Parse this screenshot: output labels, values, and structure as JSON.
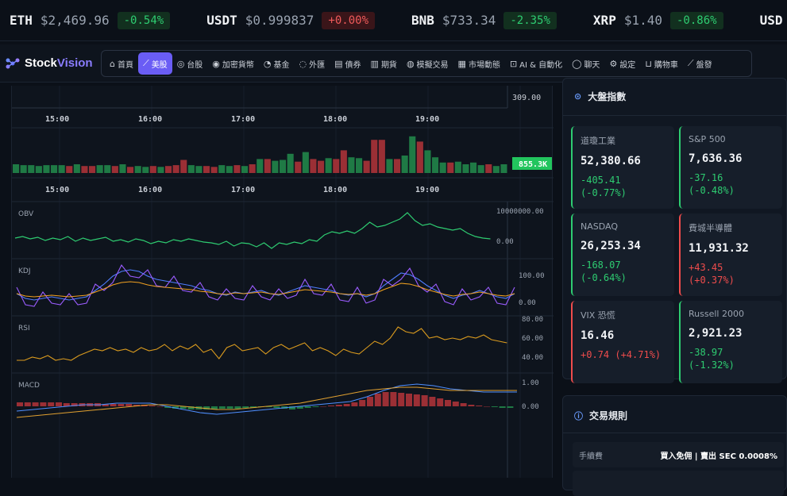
{
  "ticker": [
    {
      "symbol": "ETH",
      "price": "$2,469.96",
      "change": "-0.54%",
      "dir": "up"
    },
    {
      "symbol": "USDT",
      "price": "$0.999837",
      "change": "+0.00%",
      "dir": "neutral"
    },
    {
      "symbol": "BNB",
      "price": "$733.34",
      "change": "-2.35%",
      "dir": "up"
    },
    {
      "symbol": "XRP",
      "price": "$1.40",
      "change": "-0.86%",
      "dir": "up"
    },
    {
      "symbol": "USD",
      "price": "",
      "change": "",
      "dir": "up"
    }
  ],
  "brand": {
    "name_a": "Stock",
    "name_b": "Vision"
  },
  "nav": [
    {
      "icon": "⌂",
      "label": "首頁"
    },
    {
      "icon": "⟋",
      "label": "美股",
      "active": true
    },
    {
      "icon": "◎",
      "label": "台股"
    },
    {
      "icon": "◉",
      "label": "加密貨幣"
    },
    {
      "icon": "◔",
      "label": "基金"
    },
    {
      "icon": "◌",
      "label": "外匯"
    },
    {
      "icon": "▤",
      "label": "債券"
    },
    {
      "icon": "▥",
      "label": "期貨"
    },
    {
      "icon": "◍",
      "label": "模擬交易"
    },
    {
      "icon": "▦",
      "label": "市場動態"
    },
    {
      "icon": "⊡",
      "label": "AI & 自動化"
    },
    {
      "icon": "◯",
      "label": "聊天"
    },
    {
      "icon": "⚙",
      "label": "設定"
    },
    {
      "icon": "⊔",
      "label": "購物車"
    },
    {
      "icon": "⟋",
      "label": "盤發"
    }
  ],
  "chart": {
    "top_price_label": "309.00",
    "time_labels": [
      "15:00",
      "16:00",
      "17:00",
      "18:00",
      "19:00"
    ],
    "volume_label": "855.3K",
    "obv": {
      "name": "OBV",
      "top": "10000000.00",
      "bottom": "0.00"
    },
    "kdj": {
      "name": "KDJ",
      "top": "100.00",
      "bottom": "0.00"
    },
    "rsi": {
      "name": "RSI",
      "top": "80.00",
      "mid": "60.00",
      "bottom": "40.00"
    },
    "macd": {
      "name": "MACD",
      "top": "1.00",
      "bottom": "0.00"
    },
    "colors": {
      "up": "#1f7a45",
      "down": "#9b2f35",
      "obv": "#2ecc71",
      "k": "#4f7dff",
      "d": "#f0a020",
      "j": "#9b5cff",
      "rsi": "#d99a1e",
      "dif": "#4f8fff",
      "dea": "#e0a030"
    }
  },
  "indices": {
    "title": "大盤指數",
    "items": [
      {
        "name": "道瓊工業",
        "value": "52,380.66",
        "chg1": "-405.41",
        "chg2": "(-0.77%)",
        "color": "up"
      },
      {
        "name": "S&P 500",
        "value": "7,636.36",
        "chg1": "-37.16 (-0.48%)",
        "chg2": "",
        "color": "up"
      },
      {
        "name": "NASDAQ",
        "value": "26,253.34",
        "chg1": "-168.07",
        "chg2": "(-0.64%)",
        "color": "up"
      },
      {
        "name": "費城半導體",
        "value": "11,931.32",
        "chg1": "+43.45 (+0.37%)",
        "chg2": "",
        "color": "down"
      },
      {
        "name": "VIX 恐慌",
        "value": "16.46",
        "chg1": "+0.74 (+4.71%)",
        "chg2": "",
        "color": "down"
      },
      {
        "name": "Russell 2000",
        "value": "2,921.23",
        "chg1": "-38.97 (-1.32%)",
        "chg2": "",
        "color": "up"
      }
    ]
  },
  "rules": {
    "title": "交易規則",
    "rows": [
      {
        "key": "手續費",
        "value": "買入免佣 | 賣出 SEC 0.0008%"
      }
    ]
  }
}
